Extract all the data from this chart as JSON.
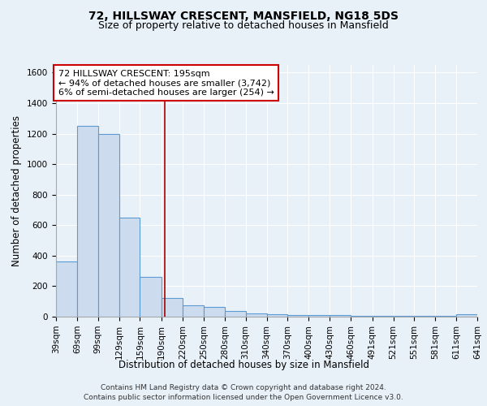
{
  "title1": "72, HILLSWAY CRESCENT, MANSFIELD, NG18 5DS",
  "title2": "Size of property relative to detached houses in Mansfield",
  "xlabel": "Distribution of detached houses by size in Mansfield",
  "ylabel": "Number of detached properties",
  "footer1": "Contains HM Land Registry data © Crown copyright and database right 2024.",
  "footer2": "Contains public sector information licensed under the Open Government Licence v3.0.",
  "annotation_line1": "72 HILLSWAY CRESCENT: 195sqm",
  "annotation_line2": "← 94% of detached houses are smaller (3,742)",
  "annotation_line3": "6% of semi-detached houses are larger (254) →",
  "bar_left_edges": [
    39,
    69,
    99,
    129,
    159,
    190,
    220,
    250,
    280,
    310,
    340,
    370,
    400,
    430,
    460,
    491,
    521,
    551,
    581,
    611
  ],
  "bar_widths": [
    30,
    30,
    30,
    30,
    31,
    30,
    30,
    30,
    30,
    30,
    30,
    30,
    30,
    30,
    31,
    30,
    30,
    30,
    30,
    30
  ],
  "bar_heights": [
    360,
    1250,
    1200,
    650,
    260,
    120,
    75,
    65,
    35,
    20,
    15,
    12,
    10,
    8,
    7,
    5,
    5,
    4,
    3,
    15
  ],
  "bar_face_color": "#ccdcee",
  "bar_edge_color": "#5b9bd5",
  "property_line_x": 195,
  "property_line_color": "#aa0000",
  "annotation_box_color": "#cc0000",
  "ylim": [
    0,
    1650
  ],
  "yticks": [
    0,
    200,
    400,
    600,
    800,
    1000,
    1200,
    1400,
    1600
  ],
  "xlim": [
    39,
    641
  ],
  "xtick_labels": [
    "39sqm",
    "69sqm",
    "99sqm",
    "129sqm",
    "159sqm",
    "190sqm",
    "220sqm",
    "250sqm",
    "280sqm",
    "310sqm",
    "340sqm",
    "370sqm",
    "400sqm",
    "430sqm",
    "460sqm",
    "491sqm",
    "521sqm",
    "551sqm",
    "581sqm",
    "611sqm",
    "641sqm"
  ],
  "xtick_positions": [
    39,
    69,
    99,
    129,
    159,
    190,
    220,
    250,
    280,
    310,
    340,
    370,
    400,
    430,
    460,
    491,
    521,
    551,
    581,
    611,
    641
  ],
  "bg_color": "#e8f0f8",
  "plot_bg_color": "#e8f0f8",
  "grid_color": "#ffffff",
  "title1_fontsize": 10,
  "title2_fontsize": 9,
  "axis_label_fontsize": 8.5,
  "tick_fontsize": 7.5,
  "annotation_fontsize": 8,
  "footer_fontsize": 6.5
}
